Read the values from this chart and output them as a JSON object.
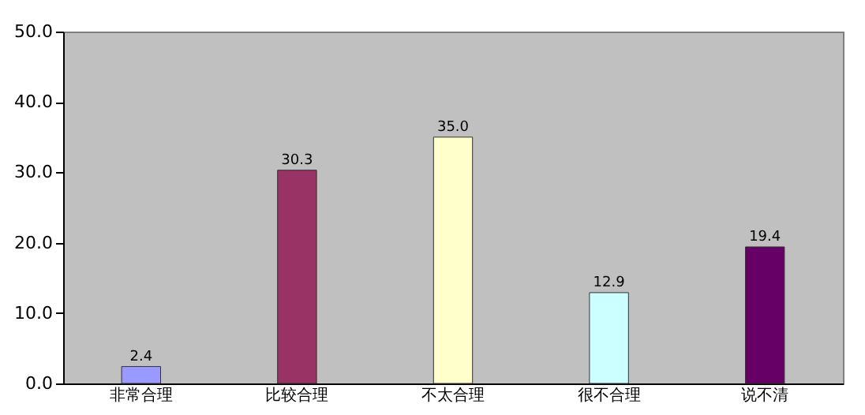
{
  "chart_data": {
    "type": "bar",
    "categories": [
      "非常合理",
      "比较合理",
      "不太合理",
      "很不合理",
      "说不清"
    ],
    "values": [
      2.4,
      30.3,
      35.0,
      12.9,
      19.4
    ],
    "colors": [
      "#9999ff",
      "#993366",
      "#ffffcc",
      "#ccffff",
      "#660066"
    ],
    "ylim": [
      0,
      50
    ],
    "yticks": [
      {
        "value": 0,
        "label": "0.0"
      },
      {
        "value": 10,
        "label": "10.0"
      },
      {
        "value": 20,
        "label": "20.0"
      },
      {
        "value": 30,
        "label": "30.0"
      },
      {
        "value": 40,
        "label": "40.0"
      },
      {
        "value": 50,
        "label": "50.0"
      }
    ],
    "value_labels": [
      "2.4",
      "30.3",
      "35.0",
      "12.9",
      "19.4"
    ],
    "grid": false
  }
}
